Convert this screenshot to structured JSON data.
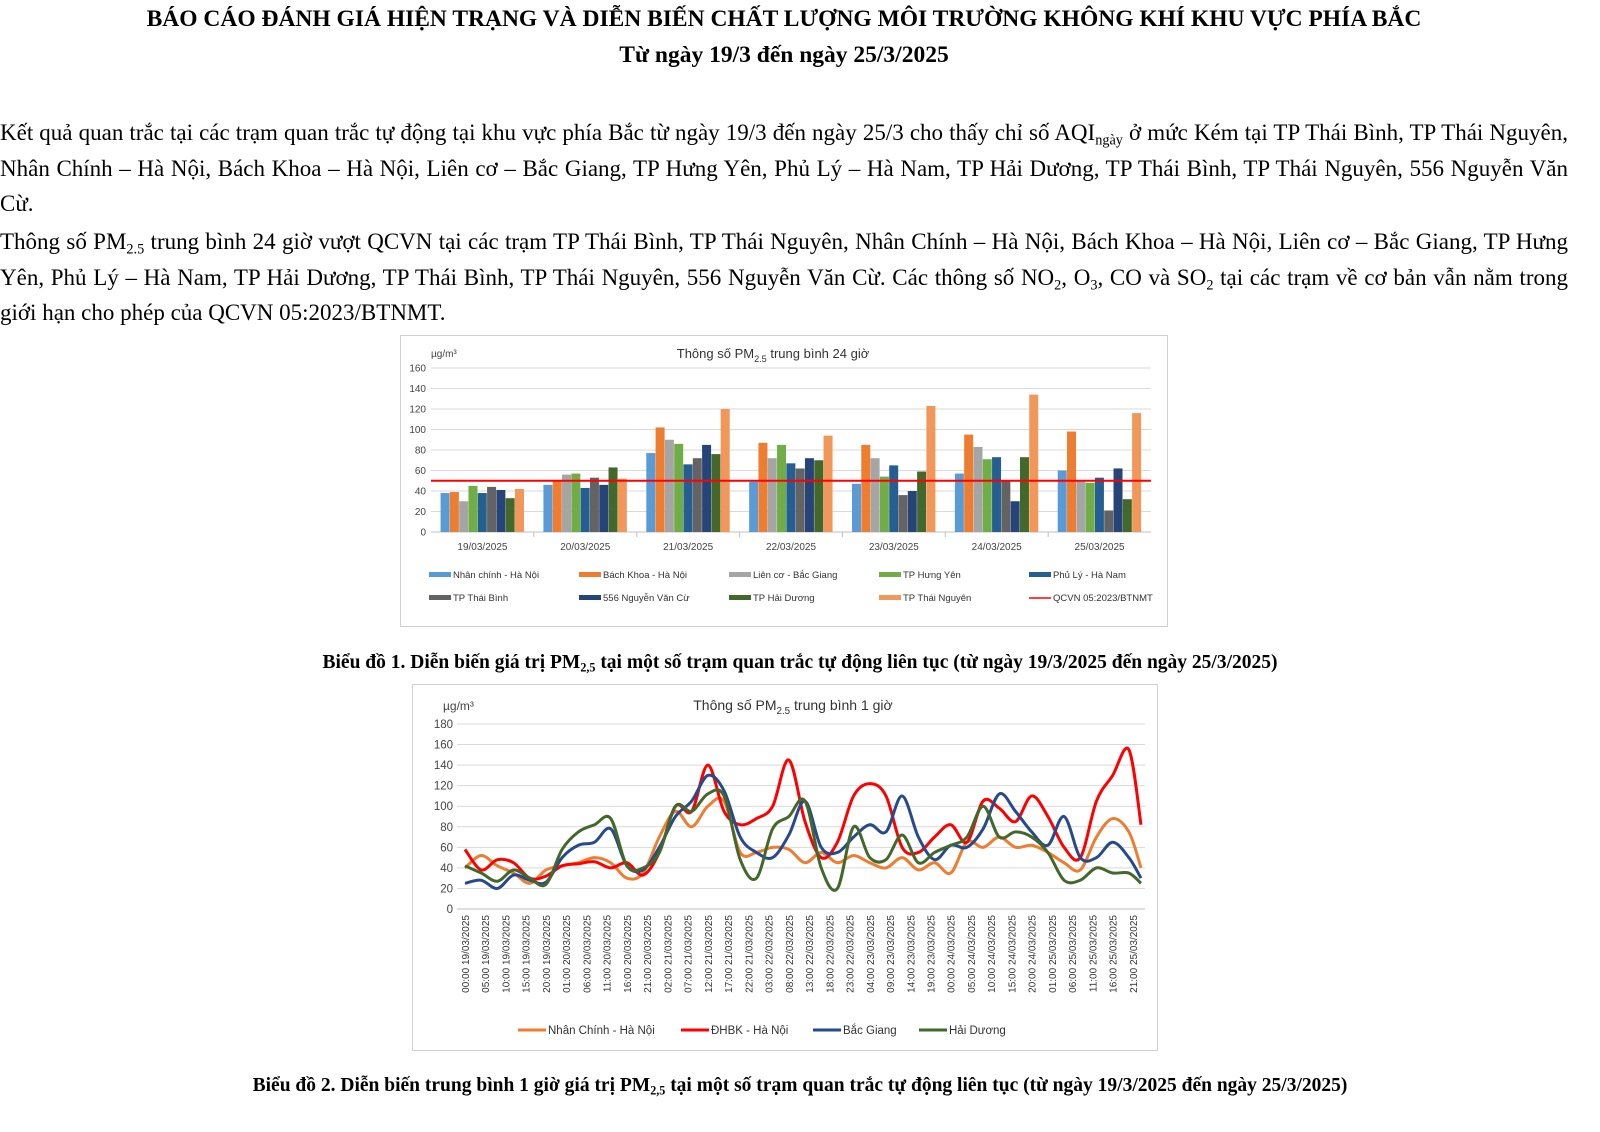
{
  "header": {
    "title_line1": "BÁO CÁO ĐÁNH GIÁ HIỆN TRẠNG VÀ DIỄN BIẾN CHẤT LƯỢNG MÔI TRƯỜNG KHÔNG KHÍ KHU VỰC PHÍA BẮC",
    "title_line2": "Từ ngày 19/3 đến ngày 25/3/2025"
  },
  "paragraphs": [
    [
      {
        "t": "Kết quả quan trắc tại các trạm quan trắc tự động tại khu vực phía Bắc từ ngày 19/3 đến ngày 25/3 cho thấy chỉ số AQI"
      },
      {
        "t": "ngày",
        "sub": true
      },
      {
        "t": " ở mức Kém tại TP Thái Bình, TP Thái Nguyên, Nhân Chính – Hà Nội, Bách Khoa – Hà Nội, Liên cơ – Bắc Giang, TP Hưng Yên, Phủ Lý – Hà Nam, TP Hải Dương, TP Thái Bình, TP Thái Nguyên, 556 Nguyễn Văn Cừ."
      }
    ],
    [
      {
        "t": "Thông số PM"
      },
      {
        "t": "2.5",
        "sub": true
      },
      {
        "t": " trung bình 24 giờ vượt QCVN tại các trạm TP Thái Bình, TP Thái Nguyên, Nhân Chính – Hà Nội, Bách Khoa – Hà Nội, Liên cơ – Bắc Giang, TP Hưng Yên, Phủ Lý – Hà Nam, TP Hải Dương, TP Thái Bình, TP Thái Nguyên, 556 Nguyễn Văn Cừ. Các thông số NO"
      },
      {
        "t": "2",
        "sub": true
      },
      {
        "t": ", O"
      },
      {
        "t": "3",
        "sub": true
      },
      {
        "t": ", CO và SO"
      },
      {
        "t": "2",
        "sub": true
      },
      {
        "t": " tại các trạm về cơ bản vẫn nằm trong giới hạn cho phép của QCVN 05:2023/BTNMT."
      }
    ]
  ],
  "captions": [
    [
      {
        "t": "Biểu đồ 1. Diễn biến giá trị PM"
      },
      {
        "t": "2,5",
        "sub": true
      },
      {
        "t": " tại một số trạm quan trắc tự động liên tục (từ ngày 19/3/2025 đến ngày 25/3/2025)"
      }
    ],
    [
      {
        "t": "Biểu đồ 2. Diễn biến trung bình 1 giờ giá trị PM"
      },
      {
        "t": "2,5",
        "sub": true
      },
      {
        "t": " tại một số trạm quan trắc tự động liên tục (từ ngày 19/3/2025 đến ngày 25/3/2025)"
      }
    ]
  ],
  "chart_data": [
    {
      "type": "bar",
      "title_pre": "Thông số PM",
      "title_sub": "2.5",
      "title_post": " trung bình 24 giờ",
      "ylabel": "µg/m³",
      "ylim": [
        0,
        160
      ],
      "yticks": [
        0,
        20,
        40,
        60,
        80,
        100,
        120,
        140,
        160
      ],
      "grid": true,
      "legend_position": "bottom",
      "categories": [
        "19/03/2025",
        "20/03/2025",
        "21/03/2025",
        "22/03/2025",
        "23/03/2025",
        "24/03/2025",
        "25/03/2025"
      ],
      "series": [
        {
          "name": "Nhân chính - Hà Nội",
          "color": "#5B9BD5",
          "values": [
            38,
            46,
            77,
            49,
            47,
            57,
            60
          ]
        },
        {
          "name": "Bách Khoa - Hà Nội",
          "color": "#ED7D31",
          "values": [
            39,
            50,
            102,
            87,
            85,
            95,
            98
          ]
        },
        {
          "name": "Liên cơ - Bắc Giang",
          "color": "#A5A5A5",
          "values": [
            30,
            56,
            90,
            72,
            72,
            83,
            50
          ]
        },
        {
          "name": "TP Hưng Yên",
          "color": "#70AD47",
          "values": [
            45,
            57,
            86,
            85,
            54,
            71,
            48
          ]
        },
        {
          "name": "Phủ Lý - Hà Nam",
          "color": "#255E91",
          "values": [
            38,
            43,
            66,
            67,
            65,
            73,
            53
          ]
        },
        {
          "name": "TP Thái Bình",
          "color": "#636363",
          "values": [
            44,
            53,
            72,
            62,
            36,
            50,
            21
          ]
        },
        {
          "name": "556 Nguyễn Văn Cừ",
          "color": "#264478",
          "values": [
            41,
            46,
            85,
            72,
            40,
            30,
            62
          ]
        },
        {
          "name": "TP Hải Dương",
          "color": "#43682B",
          "values": [
            33,
            63,
            76,
            70,
            59,
            73,
            32
          ]
        },
        {
          "name": "TP Thái Nguyên",
          "color": "#F1975A",
          "values": [
            42,
            52,
            120,
            94,
            123,
            134,
            116
          ]
        }
      ],
      "reference_line": {
        "name": "QCVN 05:2023/BTNMT",
        "color": "#FF0000",
        "value": 50
      }
    },
    {
      "type": "line",
      "title_pre": "Thông số PM",
      "title_sub": "2.5",
      "title_post": " trung bình 1 giờ",
      "ylabel": "µg/m³",
      "ylim": [
        0,
        180
      ],
      "yticks": [
        0,
        20,
        40,
        60,
        80,
        100,
        120,
        140,
        160,
        180
      ],
      "grid": true,
      "legend_position": "bottom",
      "x_hours_range": [
        0,
        167
      ],
      "x_step_hours": 4,
      "xtick_labels": [
        "00:00 19/03/2025",
        "05:00 19/03/2025",
        "10:00 19/03/2025",
        "15:00 19/03/2025",
        "20:00 19/03/2025",
        "01:00 20/03/2025",
        "06:00 20/03/2025",
        "11:00 20/03/2025",
        "16:00 20/03/2025",
        "21:00 20/03/2025",
        "02:00 21/03/2025",
        "07:00 21/03/2025",
        "12:00 21/03/2025",
        "17:00 21/03/2025",
        "22:00 21/03/2025",
        "03:00 22/03/2025",
        "08:00 22/03/2025",
        "13:00 22/03/2025",
        "18:00 22/03/2025",
        "23:00 22/03/2025",
        "04:00 23/03/2025",
        "09:00 23/03/2025",
        "14:00 23/03/2025",
        "19:00 23/03/2025",
        "00:00 24/03/2025",
        "05:00 24/03/2025",
        "10:00 24/03/2025",
        "15:00 24/03/2025",
        "20:00 24/03/2025",
        "01:00 25/03/2025",
        "06:00 25/03/2025",
        "11:00 25/03/2025",
        "16:00 25/03/2025",
        "21:00 25/03/2025"
      ],
      "series": [
        {
          "name": "Nhân Chính - Hà Nội",
          "color": "#ED7D31",
          "values": [
            40,
            52,
            42,
            35,
            25,
            38,
            42,
            45,
            50,
            45,
            30,
            35,
            70,
            95,
            80,
            100,
            105,
            55,
            55,
            60,
            58,
            45,
            55,
            45,
            52,
            45,
            40,
            50,
            38,
            45,
            35,
            65,
            60,
            70,
            60,
            62,
            55,
            45,
            38,
            70,
            88,
            75,
            40
          ]
        },
        {
          "name": "ĐHBK - Hà Nội",
          "color": "#FF0000",
          "values": [
            58,
            38,
            48,
            45,
            30,
            32,
            42,
            44,
            46,
            40,
            45,
            33,
            55,
            100,
            95,
            140,
            95,
            82,
            88,
            100,
            145,
            85,
            50,
            65,
            110,
            122,
            110,
            60,
            55,
            70,
            82,
            65,
            105,
            98,
            85,
            110,
            90,
            60,
            50,
            105,
            130,
            155,
            82
          ]
        },
        {
          "name": "Bắc Giang",
          "color": "#264A8C",
          "values": [
            25,
            28,
            20,
            33,
            28,
            26,
            50,
            62,
            65,
            78,
            42,
            38,
            60,
            90,
            105,
            130,
            115,
            70,
            55,
            50,
            72,
            105,
            60,
            55,
            70,
            82,
            75,
            110,
            70,
            48,
            62,
            60,
            78,
            112,
            95,
            75,
            62,
            90,
            50,
            50,
            65,
            50,
            30
          ]
        },
        {
          "name": "Hải Dương",
          "color": "#43682B",
          "values": [
            42,
            35,
            27,
            38,
            30,
            24,
            58,
            75,
            82,
            88,
            42,
            40,
            55,
            100,
            95,
            112,
            110,
            48,
            30,
            78,
            90,
            105,
            40,
            20,
            80,
            50,
            48,
            72,
            45,
            55,
            62,
            70,
            100,
            70,
            75,
            70,
            55,
            28,
            28,
            40,
            35,
            35,
            25
          ]
        }
      ]
    }
  ]
}
